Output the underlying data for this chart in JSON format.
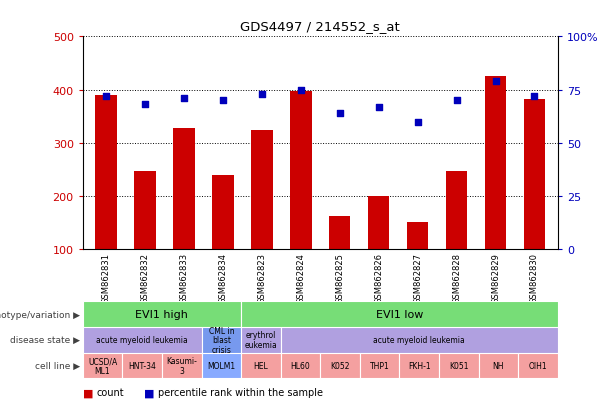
{
  "title": "GDS4497 / 214552_s_at",
  "samples": [
    "GSM862831",
    "GSM862832",
    "GSM862833",
    "GSM862834",
    "GSM862823",
    "GSM862824",
    "GSM862825",
    "GSM862826",
    "GSM862827",
    "GSM862828",
    "GSM862829",
    "GSM862830"
  ],
  "counts": [
    390,
    247,
    328,
    239,
    325,
    397,
    162,
    200,
    152,
    247,
    425,
    383
  ],
  "percentiles": [
    72,
    68,
    71,
    70,
    73,
    75,
    64,
    67,
    60,
    70,
    79,
    72
  ],
  "bar_color": "#cc0000",
  "dot_color": "#0000bb",
  "ylim_left": [
    100,
    500
  ],
  "ylim_right": [
    0,
    100
  ],
  "yticks_left": [
    100,
    200,
    300,
    400,
    500
  ],
  "yticks_right": [
    0,
    25,
    50,
    75,
    100
  ],
  "yticklabels_right": [
    "0",
    "25",
    "50",
    "75",
    "100%"
  ],
  "genotype_labels": [
    {
      "label": "EVI1 high",
      "start": 0,
      "end": 4,
      "color": "#77dd77"
    },
    {
      "label": "EVI1 low",
      "start": 4,
      "end": 12,
      "color": "#77dd77"
    }
  ],
  "disease_labels": [
    {
      "label": "acute myeloid leukemia",
      "start": 0,
      "end": 3,
      "color": "#b0a0e0"
    },
    {
      "label": "CML in\nblast\ncrisis",
      "start": 3,
      "end": 4,
      "color": "#7799ee"
    },
    {
      "label": "erythrol\neukemia",
      "start": 4,
      "end": 5,
      "color": "#b0a0e0"
    },
    {
      "label": "acute myeloid leukemia",
      "start": 5,
      "end": 12,
      "color": "#b0a0e0"
    }
  ],
  "cell_labels": [
    {
      "label": "UCSD/A\nML1",
      "start": 0,
      "end": 1,
      "color": "#f4a0a0"
    },
    {
      "label": "HNT-34",
      "start": 1,
      "end": 2,
      "color": "#f4a0a0"
    },
    {
      "label": "Kasumi-\n3",
      "start": 2,
      "end": 3,
      "color": "#f4a0a0"
    },
    {
      "label": "MOLM1",
      "start": 3,
      "end": 4,
      "color": "#88aaff"
    },
    {
      "label": "HEL",
      "start": 4,
      "end": 5,
      "color": "#f4a0a0"
    },
    {
      "label": "HL60",
      "start": 5,
      "end": 6,
      "color": "#f4a0a0"
    },
    {
      "label": "K052",
      "start": 6,
      "end": 7,
      "color": "#f4a0a0"
    },
    {
      "label": "THP1",
      "start": 7,
      "end": 8,
      "color": "#f4a0a0"
    },
    {
      "label": "FKH-1",
      "start": 8,
      "end": 9,
      "color": "#f4a0a0"
    },
    {
      "label": "K051",
      "start": 9,
      "end": 10,
      "color": "#f4a0a0"
    },
    {
      "label": "NH",
      "start": 10,
      "end": 11,
      "color": "#f4a0a0"
    },
    {
      "label": "OIH1",
      "start": 11,
      "end": 12,
      "color": "#f4a0a0"
    }
  ],
  "row_labels": [
    "genotype/variation",
    "disease state",
    "cell line"
  ],
  "row_label_color": "#404040",
  "xtick_bg_color": "#c8c8c8",
  "legend_count_color": "#cc0000",
  "legend_dot_color": "#0000bb",
  "legend_count_label": "count",
  "legend_dot_label": "percentile rank within the sample"
}
